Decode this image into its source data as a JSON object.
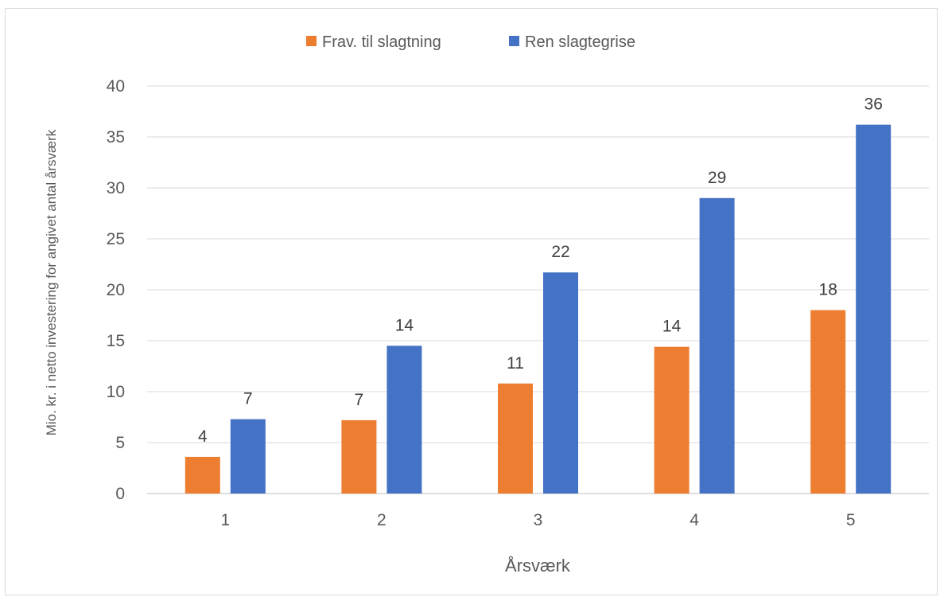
{
  "chart_data": {
    "type": "bar",
    "categories": [
      "1",
      "2",
      "3",
      "4",
      "5"
    ],
    "series": [
      {
        "name": "Frav. til slagtning",
        "color": "#ED7D31",
        "values": [
          3.6,
          7.2,
          10.8,
          14.4,
          18.0
        ],
        "labels": [
          "4",
          "7",
          "11",
          "14",
          "18"
        ]
      },
      {
        "name": "Ren slagtegrise",
        "color": "#4472C4",
        "values": [
          7.3,
          14.5,
          21.7,
          29.0,
          36.2
        ],
        "labels": [
          "7",
          "14",
          "22",
          "29",
          "36"
        ]
      }
    ],
    "xlabel": "Årsværk",
    "ylabel": "Mio. kr. i netto investering for angivet antal årsværk",
    "ylim": [
      0,
      40
    ],
    "yticks": [
      "0",
      "5",
      "10",
      "15",
      "20",
      "25",
      "30",
      "35",
      "40"
    ],
    "grid": true,
    "legend": "top-center"
  }
}
